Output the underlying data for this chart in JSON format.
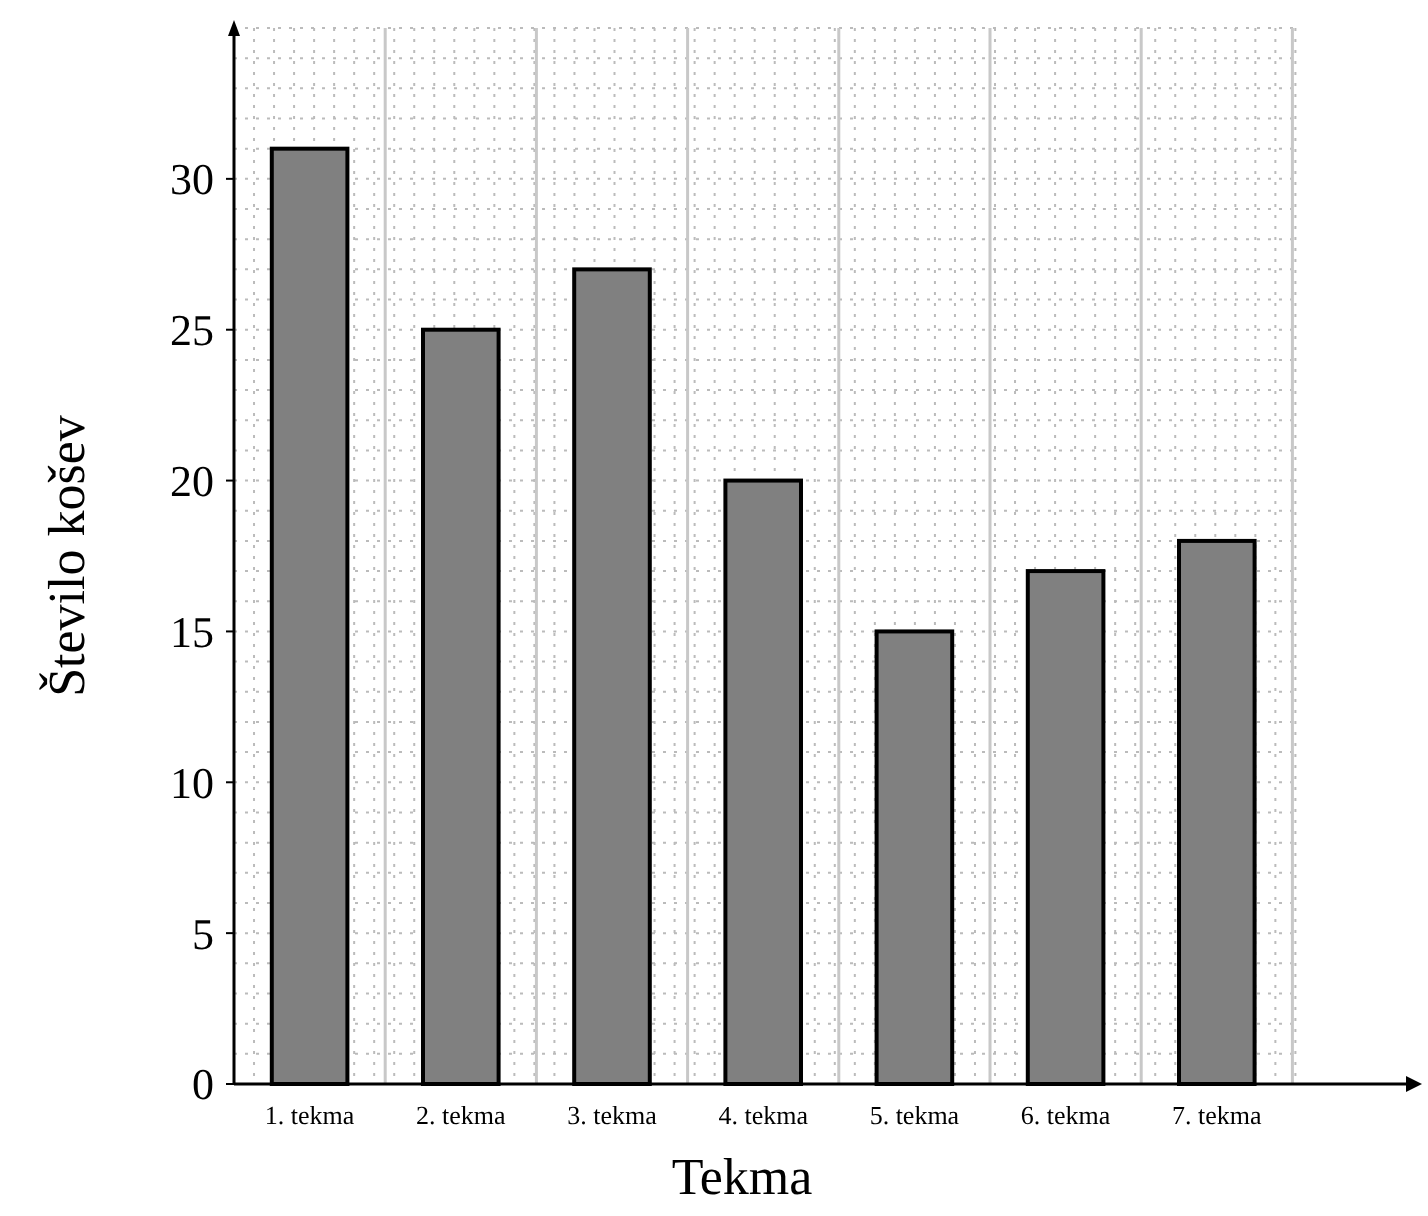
{
  "chart_data": {
    "type": "bar",
    "xlabel": "Tekma",
    "ylabel": "Število košev",
    "categories": [
      "1. tekma",
      "2. tekma",
      "3. tekma",
      "4. tekma",
      "5. tekma",
      "6. tekma",
      "7. tekma"
    ],
    "values": [
      31,
      25,
      27,
      20,
      15,
      17,
      18
    ],
    "color": "#808080",
    "ylim": [
      0,
      35
    ],
    "yticks": [
      0,
      5,
      10,
      15,
      20,
      25,
      30
    ],
    "grid": true
  }
}
